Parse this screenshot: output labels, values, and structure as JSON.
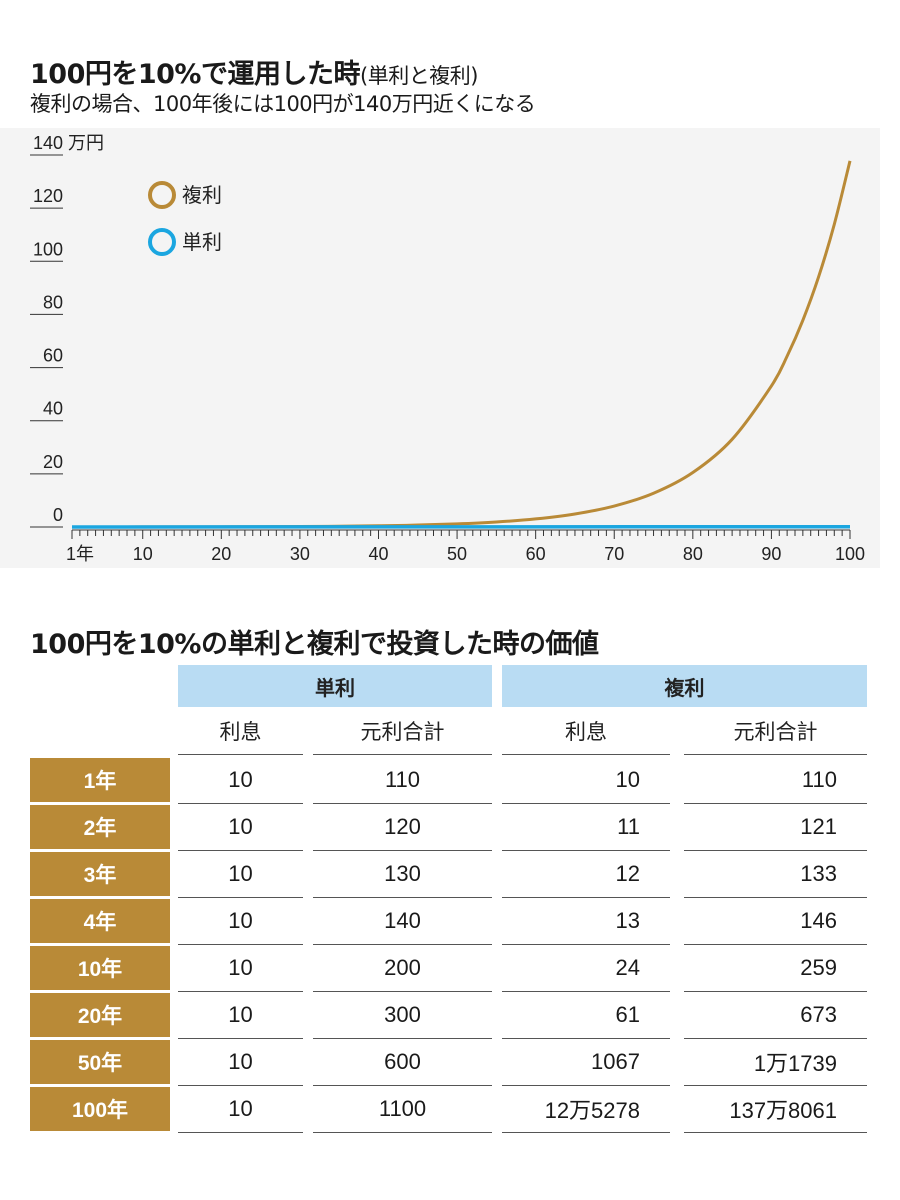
{
  "chart_title": "100円を10%で運用した時",
  "chart_title_paren": "(単利と複利)",
  "chart_subtitle": "複利の場合、100年後には100円が140万円近くになる",
  "colors": {
    "compound": "#b98a37",
    "simple": "#1ba6e0",
    "header_blue": "#b9dcf3",
    "row_gold": "#b98a37"
  },
  "chart_data": {
    "type": "line",
    "y_unit": "万円",
    "ylim": [
      0,
      140
    ],
    "y_ticks": [
      0,
      20,
      40,
      60,
      80,
      100,
      120,
      140
    ],
    "xlim": [
      1,
      100
    ],
    "x_tick_labels": [
      "1年",
      "10",
      "20",
      "30",
      "40",
      "50",
      "60",
      "70",
      "80",
      "90",
      "100"
    ],
    "x_tick_values": [
      1,
      10,
      20,
      30,
      40,
      50,
      60,
      70,
      80,
      90,
      100
    ],
    "legend_placement": "top-left",
    "series": [
      {
        "name": "複利",
        "x": [
          1,
          10,
          20,
          30,
          40,
          45,
          50,
          55,
          60,
          65,
          70,
          75,
          80,
          85,
          90,
          92,
          94,
          96,
          98,
          100
        ],
        "y": [
          0.011,
          0.026,
          0.067,
          0.174,
          0.453,
          0.73,
          1.17,
          1.89,
          3.04,
          4.9,
          7.89,
          12.7,
          20.5,
          33.0,
          53.1,
          64.3,
          77.8,
          94.1,
          113.9,
          137.8
        ]
      },
      {
        "name": "単利",
        "x": [
          1,
          100
        ],
        "y": [
          0.011,
          0.11
        ]
      }
    ]
  },
  "table": {
    "title": "100円を10%の単利と複利で投資した時の価値",
    "groups": [
      "単利",
      "複利"
    ],
    "columns": [
      "利息",
      "元利合計",
      "利息",
      "元利合計"
    ],
    "rows": [
      {
        "label": "1年",
        "cells": [
          "10",
          "110",
          "10",
          "110"
        ]
      },
      {
        "label": "2年",
        "cells": [
          "10",
          "120",
          "11",
          "121"
        ]
      },
      {
        "label": "3年",
        "cells": [
          "10",
          "130",
          "12",
          "133"
        ]
      },
      {
        "label": "4年",
        "cells": [
          "10",
          "140",
          "13",
          "146"
        ]
      },
      {
        "label": "10年",
        "cells": [
          "10",
          "200",
          "24",
          "259"
        ]
      },
      {
        "label": "20年",
        "cells": [
          "10",
          "300",
          "61",
          "673"
        ]
      },
      {
        "label": "50年",
        "cells": [
          "10",
          "600",
          "1067",
          "1万1739"
        ]
      },
      {
        "label": "100年",
        "cells": [
          "10",
          "1100",
          "12万5278",
          "137万8061"
        ]
      }
    ]
  }
}
